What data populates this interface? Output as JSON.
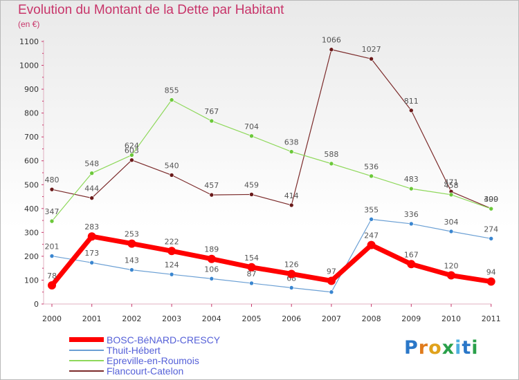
{
  "title": "Evolution du Montant de la Dette par Habitant",
  "unit": "(en €)",
  "logo": "Proxiti",
  "chart_data": {
    "type": "line",
    "title": "Evolution du Montant de la Dette par Habitant",
    "ylabel": "(en €)",
    "xlabel": "",
    "categories": [
      "2000",
      "2001",
      "2002",
      "2003",
      "2004",
      "2005",
      "2006",
      "2007",
      "2008",
      "2009",
      "2010",
      "2011"
    ],
    "ylim": [
      0,
      1100
    ],
    "yticks": [
      0,
      100,
      200,
      300,
      400,
      500,
      600,
      700,
      800,
      900,
      1000,
      1100
    ],
    "grid": false,
    "legend_position": "bottom-left",
    "series": [
      {
        "name": "Flancourt-Catelon",
        "color": "#7b2a2a",
        "marker": "#6a1a1a",
        "width": 1.2,
        "values": [
          480,
          444,
          603,
          540,
          457,
          459,
          414,
          1066,
          1027,
          811,
          471,
          400
        ],
        "labels": [
          "480",
          "444",
          "603",
          "540",
          "457",
          "459",
          "414",
          "1066",
          "1027",
          "811",
          "471",
          "400"
        ]
      },
      {
        "name": "Epreville-en-Roumois",
        "color": "#8ed85a",
        "marker": "#6cc83a",
        "width": 1.2,
        "values": [
          347,
          548,
          624,
          855,
          767,
          704,
          638,
          588,
          536,
          483,
          458,
          399
        ],
        "labels": [
          "347",
          "548",
          "624",
          "855",
          "767",
          "704",
          "638",
          "588",
          "536",
          "483",
          "458",
          "399"
        ]
      },
      {
        "name": "Thuit-Hébert",
        "color": "#6a9fd4",
        "marker": "#3a86d0",
        "width": 1.2,
        "values": [
          201,
          173,
          143,
          124,
          106,
          87,
          68,
          50,
          355,
          336,
          304,
          274
        ],
        "labels": [
          "201",
          "173",
          "143",
          "124",
          "106",
          "87",
          "68",
          "",
          "355",
          "336",
          "304",
          "274"
        ]
      },
      {
        "name": "BOSC-BéNARD-CRESCY",
        "color": "#ff0000",
        "marker": "#ff0000",
        "width": 7,
        "values": [
          78,
          283,
          253,
          222,
          189,
          154,
          126,
          97,
          247,
          167,
          120,
          94
        ],
        "labels": [
          "78",
          "283",
          "253",
          "222",
          "189",
          "154",
          "126",
          "97",
          "247",
          "167",
          "120",
          "94"
        ]
      }
    ]
  },
  "legend": [
    {
      "label": "BOSC-BéNARD-CRESCY",
      "color": "#ff0000",
      "thickness": 7
    },
    {
      "label": "Thuit-Hébert",
      "color": "#6a9fd4",
      "thickness": 2
    },
    {
      "label": "Epreville-en-Roumois",
      "color": "#8ed85a",
      "thickness": 2
    },
    {
      "label": "Flancourt-Catelon",
      "color": "#7b2a2a",
      "thickness": 2
    }
  ]
}
